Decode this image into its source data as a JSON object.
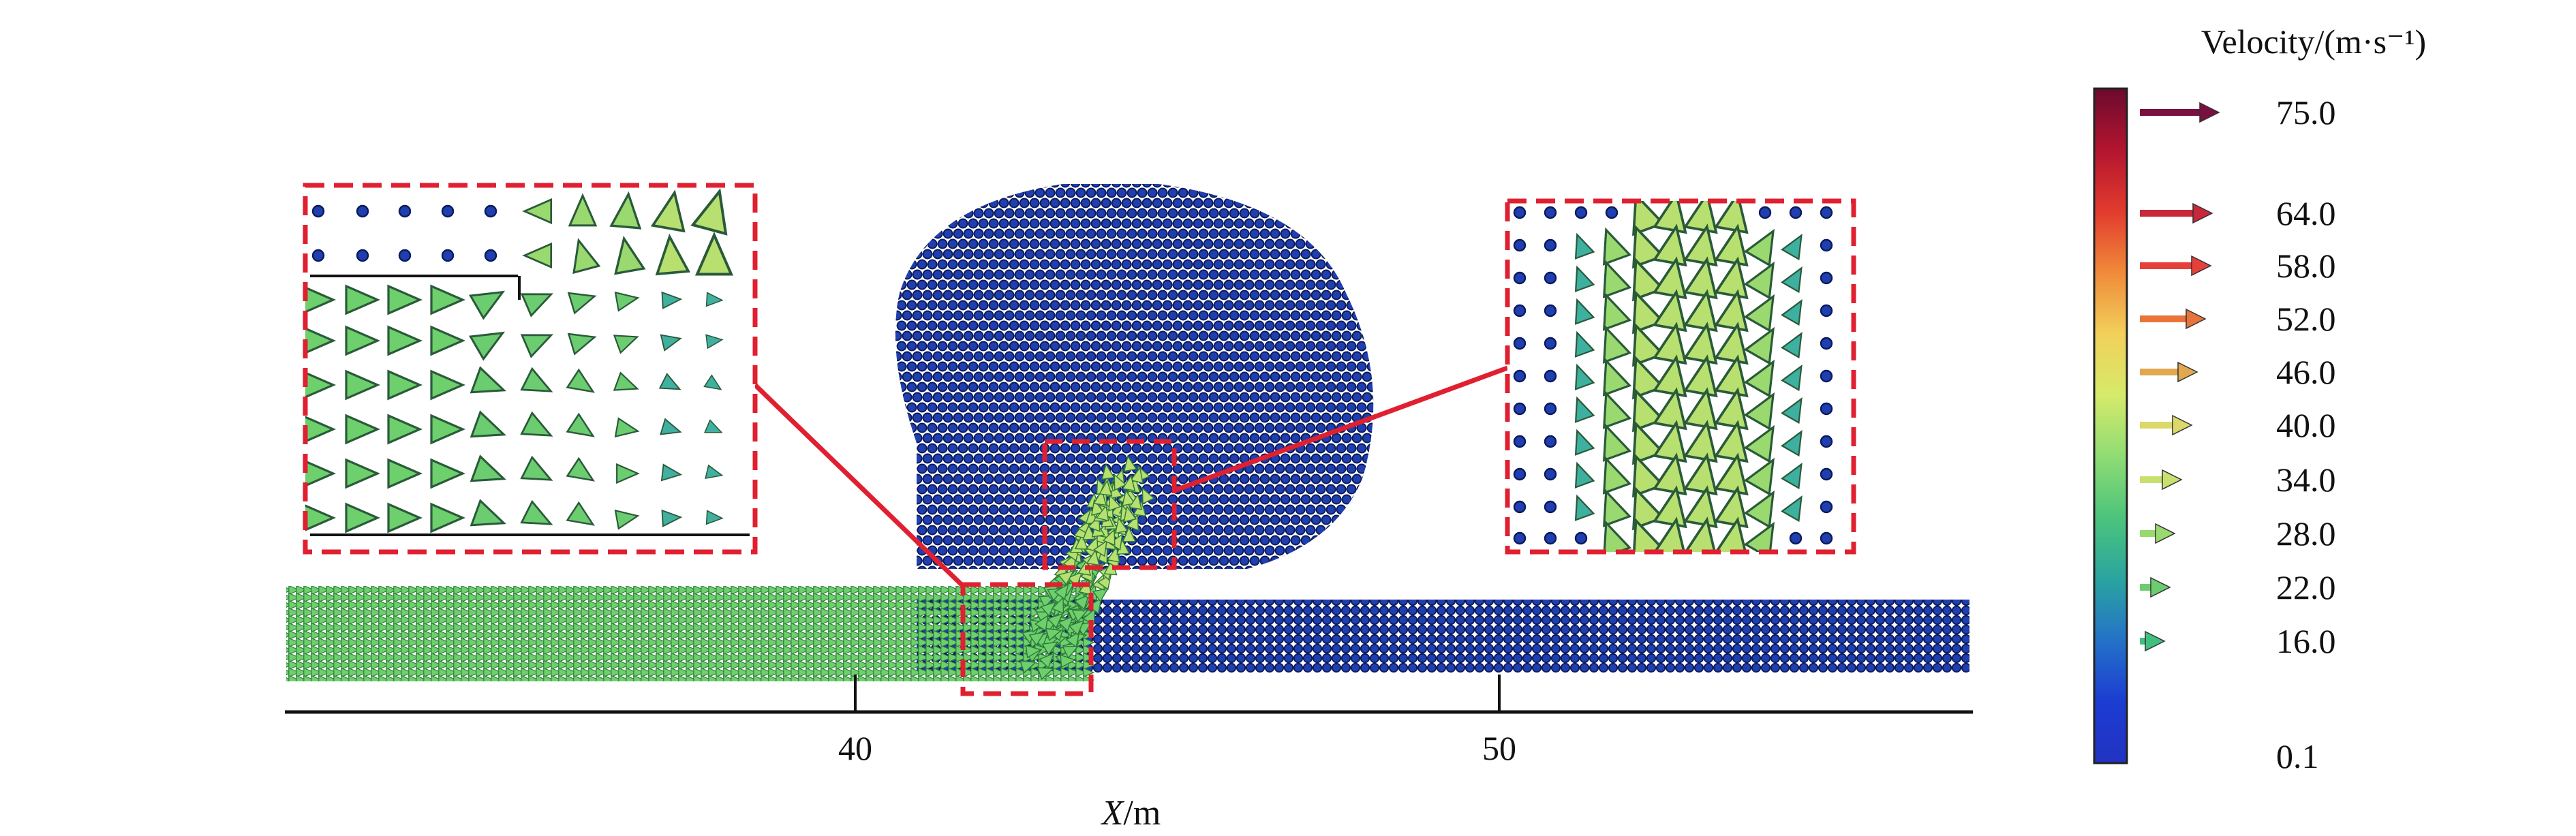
{
  "colorbar": {
    "title": "Velocity/(m·s⁻¹)",
    "ticks": [
      {
        "value": 75.0,
        "label": "75.0"
      },
      {
        "value": 64.0,
        "label": "64.0"
      },
      {
        "value": 58.0,
        "label": "58.0"
      },
      {
        "value": 52.0,
        "label": "52.0"
      },
      {
        "value": 46.0,
        "label": "46.0"
      },
      {
        "value": 40.0,
        "label": "40.0"
      },
      {
        "value": 34.0,
        "label": "34.0"
      },
      {
        "value": 28.0,
        "label": "28.0"
      },
      {
        "value": 22.0,
        "label": "22.0"
      },
      {
        "value": 16.0,
        "label": "16.0"
      },
      {
        "value": 0.1,
        "label": "0.1"
      }
    ],
    "arrow_colors": [
      "#7a1040",
      "#c8283a",
      "#e6403a",
      "#e8743a",
      "#e2a850",
      "#dcd86a",
      "#c8e070",
      "#9ad870",
      "#6ccc70",
      "#40c080"
    ],
    "gradient_colors": [
      "#6b0a2e",
      "#b3152f",
      "#e23b2e",
      "#f08a3a",
      "#f2d05a",
      "#d6ea6a",
      "#8fdc74",
      "#4cc47c",
      "#2aa4a0",
      "#2472c8",
      "#1c3cd2",
      "#2233c2"
    ]
  },
  "axis": {
    "xlabel_var": "X",
    "xlabel_unit": "/m",
    "ticks": [
      {
        "value": 40,
        "label": "40"
      },
      {
        "value": 50,
        "label": "50"
      }
    ]
  },
  "field_colors": {
    "particle": "#1f3fb0",
    "particle_edge": "#0b1a5a",
    "jet": "#6ed06c",
    "jet_edge": "#2f7a3a",
    "core": "#b8e070",
    "highlight": "#e02030"
  }
}
